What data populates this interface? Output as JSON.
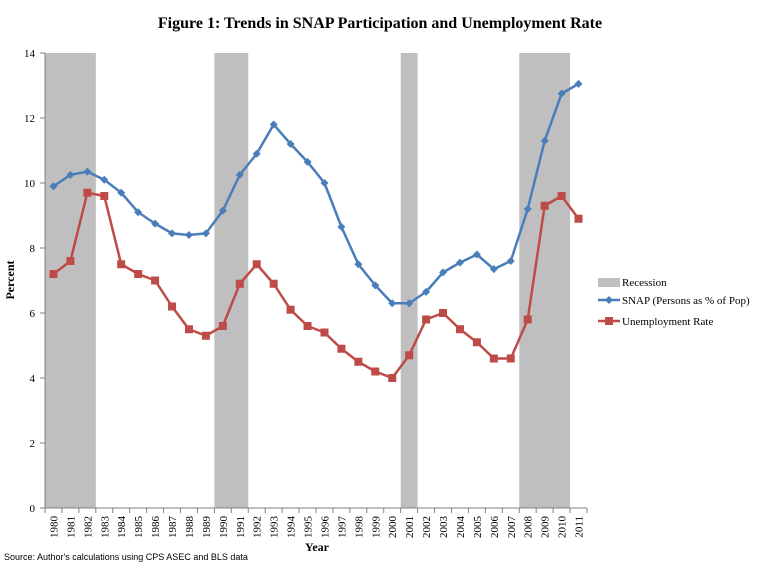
{
  "chart_data": {
    "type": "line",
    "title": "Figure 1: Trends in SNAP Participation and Unemployment Rate",
    "xlabel": "Year",
    "ylabel": "Percent",
    "ylim": [
      0,
      14
    ],
    "yticks": [
      0,
      2,
      4,
      6,
      8,
      10,
      12,
      14
    ],
    "grid": false,
    "legend_position": "right",
    "categories": [
      "1980",
      "1981",
      "1982",
      "1983",
      "1984",
      "1985",
      "1986",
      "1987",
      "1988",
      "1989",
      "1990",
      "1991",
      "1992",
      "1993",
      "1994",
      "1995",
      "1996",
      "1997",
      "1998",
      "1999",
      "2000",
      "2001",
      "2002",
      "2003",
      "2004",
      "2005",
      "2006",
      "2007",
      "2008",
      "2009",
      "2010",
      "2011"
    ],
    "recession": {
      "name": "Recession",
      "color": "#bfbfbf",
      "periods": [
        [
          "1980",
          "1982"
        ],
        [
          "1990",
          "1991"
        ],
        [
          "2001",
          "2001"
        ],
        [
          "2008",
          "2010"
        ]
      ]
    },
    "series": [
      {
        "name": "SNAP (Persons as % of Pop)",
        "color": "#4a7ebb",
        "marker": "diamond",
        "values": [
          9.9,
          10.25,
          10.35,
          10.1,
          9.7,
          9.1,
          8.75,
          8.45,
          8.4,
          8.45,
          9.15,
          10.25,
          10.9,
          11.8,
          11.2,
          10.65,
          10.0,
          8.65,
          7.5,
          6.85,
          6.3,
          6.3,
          6.65,
          7.25,
          7.55,
          7.8,
          7.35,
          7.6,
          9.2,
          11.3,
          12.75,
          13.05
        ]
      },
      {
        "name": "Unemployment Rate",
        "color": "#be4b48",
        "marker": "square",
        "values": [
          7.2,
          7.6,
          9.7,
          9.6,
          7.5,
          7.2,
          7.0,
          6.2,
          5.5,
          5.3,
          5.6,
          6.9,
          7.5,
          6.9,
          6.1,
          5.6,
          5.4,
          4.9,
          4.5,
          4.2,
          4.0,
          4.7,
          5.8,
          6.0,
          5.5,
          5.1,
          4.6,
          4.6,
          5.8,
          9.3,
          9.6,
          8.9
        ]
      }
    ]
  },
  "source_note": "Source: Author's calculations using CPS ASEC and BLS data"
}
